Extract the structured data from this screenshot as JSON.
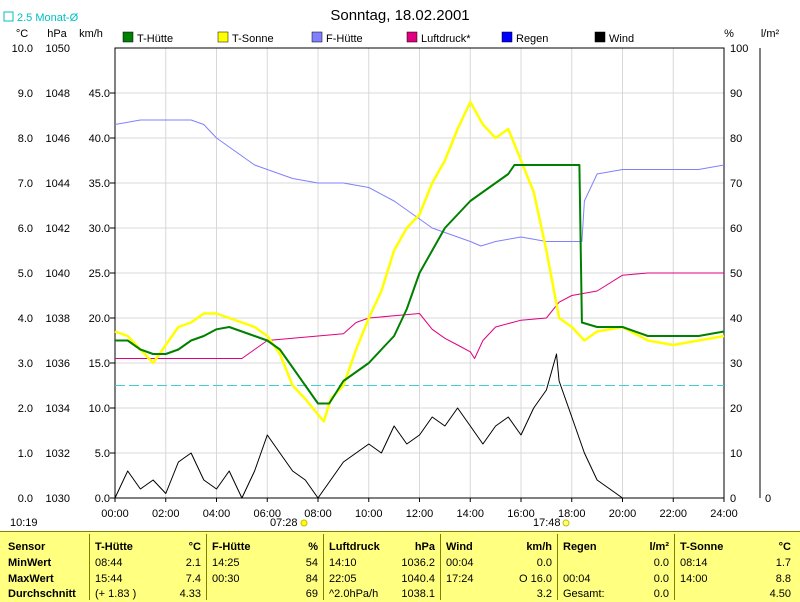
{
  "title": "Sonntag, 18.02.2001",
  "corner_label": "2.5 Monat-Ø",
  "units": {
    "c": "°C",
    "hpa": "hPa",
    "kmh": "km/h",
    "pct": "%",
    "lm2": "l/m²"
  },
  "legend": [
    {
      "label": "T-Hütte",
      "color": "#008000"
    },
    {
      "label": "T-Sonne",
      "color": "#ffff00"
    },
    {
      "label": "F-Hütte",
      "color": "#8080ff"
    },
    {
      "label": "Luftdruck*",
      "color": "#e0007f"
    },
    {
      "label": "Regen",
      "color": "#0000ff"
    },
    {
      "label": "Wind",
      "color": "#000000"
    }
  ],
  "timestamps": {
    "clock": "10:19",
    "sunrise": "07:28",
    "sunset": "17:48"
  },
  "chart_data": {
    "type": "line",
    "x_ticks": [
      "00:00",
      "02:00",
      "04:00",
      "06:00",
      "08:00",
      "10:00",
      "12:00",
      "14:00",
      "16:00",
      "18:00",
      "20:00",
      "22:00",
      "24:00"
    ],
    "axes": {
      "celsius": [
        "10.0",
        "9.0",
        "8.0",
        "7.0",
        "6.0",
        "5.0",
        "4.0",
        "3.0",
        "2.0",
        "1.0",
        "0.0"
      ],
      "hpa": [
        "1050",
        "1048",
        "1046",
        "1044",
        "1042",
        "1040",
        "1038",
        "1036",
        "1034",
        "1032",
        "1030"
      ],
      "kmh": [
        "45.0",
        "40.0",
        "35.0",
        "30.0",
        "25.0",
        "20.0",
        "15.0",
        "10.0",
        "5.0",
        "0.0"
      ],
      "percent": [
        "100",
        "90",
        "80",
        "70",
        "60",
        "50",
        "40",
        "30",
        "20",
        "10",
        "0"
      ],
      "rain": [
        "0"
      ]
    },
    "reference_line": {
      "label": "2.5 Monat-Ø",
      "celsius": 2.5
    },
    "series": [
      {
        "name": "T-Hütte",
        "axis": "celsius",
        "color": "#008000",
        "points": [
          [
            0,
            3.5
          ],
          [
            0.5,
            3.5
          ],
          [
            1,
            3.3
          ],
          [
            1.5,
            3.2
          ],
          [
            2,
            3.2
          ],
          [
            2.5,
            3.3
          ],
          [
            3,
            3.5
          ],
          [
            3.5,
            3.6
          ],
          [
            4,
            3.75
          ],
          [
            4.5,
            3.8
          ],
          [
            5,
            3.7
          ],
          [
            5.5,
            3.6
          ],
          [
            6,
            3.5
          ],
          [
            6.5,
            3.3
          ],
          [
            7,
            2.9
          ],
          [
            7.5,
            2.5
          ],
          [
            8,
            2.1
          ],
          [
            8.44,
            2.1
          ],
          [
            9,
            2.6
          ],
          [
            9.5,
            2.8
          ],
          [
            10,
            3.0
          ],
          [
            10.5,
            3.3
          ],
          [
            11,
            3.6
          ],
          [
            11.5,
            4.2
          ],
          [
            12,
            5.0
          ],
          [
            12.5,
            5.5
          ],
          [
            13,
            6.0
          ],
          [
            13.5,
            6.3
          ],
          [
            14,
            6.6
          ],
          [
            14.5,
            6.8
          ],
          [
            15,
            7.0
          ],
          [
            15.5,
            7.2
          ],
          [
            15.74,
            7.4
          ],
          [
            16.5,
            7.4
          ],
          [
            17,
            7.4
          ],
          [
            17.5,
            7.4
          ],
          [
            18,
            7.4
          ],
          [
            18.3,
            7.4
          ],
          [
            18.4,
            3.9
          ],
          [
            19,
            3.8
          ],
          [
            20,
            3.8
          ],
          [
            21,
            3.6
          ],
          [
            22,
            3.6
          ],
          [
            23,
            3.6
          ],
          [
            24,
            3.7
          ]
        ]
      },
      {
        "name": "T-Sonne",
        "axis": "celsius",
        "color": "#ffff00",
        "points": [
          [
            0,
            3.7
          ],
          [
            0.5,
            3.6
          ],
          [
            1,
            3.3
          ],
          [
            1.5,
            3.0
          ],
          [
            2,
            3.4
          ],
          [
            2.5,
            3.8
          ],
          [
            3,
            3.9
          ],
          [
            3.5,
            4.1
          ],
          [
            4,
            4.1
          ],
          [
            4.5,
            4.0
          ],
          [
            5,
            3.9
          ],
          [
            5.5,
            3.8
          ],
          [
            6,
            3.6
          ],
          [
            6.5,
            3.2
          ],
          [
            7,
            2.5
          ],
          [
            7.5,
            2.2
          ],
          [
            8.23,
            1.7
          ],
          [
            8.5,
            2.2
          ],
          [
            9,
            2.5
          ],
          [
            9.5,
            3.3
          ],
          [
            10,
            4.0
          ],
          [
            10.5,
            4.6
          ],
          [
            11,
            5.5
          ],
          [
            11.5,
            6.0
          ],
          [
            12,
            6.3
          ],
          [
            12.5,
            7.0
          ],
          [
            13,
            7.5
          ],
          [
            13.5,
            8.2
          ],
          [
            14,
            8.8
          ],
          [
            14.5,
            8.3
          ],
          [
            15,
            8.0
          ],
          [
            15.5,
            8.2
          ],
          [
            16,
            7.5
          ],
          [
            16.5,
            6.8
          ],
          [
            17,
            5.5
          ],
          [
            17.5,
            4.0
          ],
          [
            18,
            3.8
          ],
          [
            18.5,
            3.5
          ],
          [
            19,
            3.7
          ],
          [
            20,
            3.8
          ],
          [
            21,
            3.5
          ],
          [
            22,
            3.4
          ],
          [
            23,
            3.5
          ],
          [
            24,
            3.6
          ]
        ]
      },
      {
        "name": "F-Hütte",
        "axis": "percent",
        "color": "#8080ff",
        "points": [
          [
            0,
            83
          ],
          [
            1,
            84
          ],
          [
            2,
            84
          ],
          [
            3,
            84
          ],
          [
            3.5,
            83
          ],
          [
            4,
            80
          ],
          [
            4.5,
            78
          ],
          [
            5,
            76
          ],
          [
            5.5,
            74
          ],
          [
            6,
            73
          ],
          [
            7,
            71
          ],
          [
            8,
            70
          ],
          [
            9,
            70
          ],
          [
            10,
            69
          ],
          [
            11,
            66
          ],
          [
            11.5,
            64
          ],
          [
            12,
            62
          ],
          [
            12.5,
            60
          ],
          [
            13,
            59
          ],
          [
            14,
            57
          ],
          [
            14.42,
            56
          ],
          [
            15,
            57
          ],
          [
            16,
            58
          ],
          [
            17,
            57
          ],
          [
            18,
            57
          ],
          [
            18.4,
            57
          ],
          [
            18.5,
            66
          ],
          [
            19,
            72
          ],
          [
            20,
            73
          ],
          [
            21,
            73
          ],
          [
            22,
            73
          ],
          [
            23,
            73
          ],
          [
            24,
            74
          ]
        ]
      },
      {
        "name": "Luftdruck*",
        "axis": "hpa",
        "color": "#e0007f",
        "points": [
          [
            0,
            1036.2
          ],
          [
            1,
            1036.2
          ],
          [
            2,
            1036.2
          ],
          [
            3,
            1036.2
          ],
          [
            4,
            1036.2
          ],
          [
            5,
            1036.2
          ],
          [
            5.5,
            1036.6
          ],
          [
            6,
            1037.0
          ],
          [
            7,
            1037.1
          ],
          [
            8,
            1037.2
          ],
          [
            9,
            1037.3
          ],
          [
            9.5,
            1037.8
          ],
          [
            10,
            1038.0
          ],
          [
            11,
            1038.1
          ],
          [
            12,
            1038.2
          ],
          [
            12.5,
            1037.5
          ],
          [
            13,
            1037.1
          ],
          [
            13.5,
            1036.8
          ],
          [
            14,
            1036.5
          ],
          [
            14.17,
            1036.2
          ],
          [
            14.5,
            1037.0
          ],
          [
            15,
            1037.6
          ],
          [
            16,
            1037.9
          ],
          [
            17,
            1038.0
          ],
          [
            17.5,
            1038.7
          ],
          [
            18,
            1039.0
          ],
          [
            19,
            1039.2
          ],
          [
            20,
            1039.9
          ],
          [
            21,
            1040.0
          ],
          [
            22.08,
            1040.0
          ],
          [
            23,
            1040.0
          ],
          [
            24,
            1040.0
          ]
        ]
      },
      {
        "name": "Wind",
        "axis": "kmh",
        "color": "#000000",
        "points": [
          [
            0,
            0
          ],
          [
            0.5,
            3
          ],
          [
            1,
            1
          ],
          [
            1.5,
            2
          ],
          [
            2,
            0.5
          ],
          [
            2.5,
            4
          ],
          [
            3,
            5
          ],
          [
            3.5,
            2
          ],
          [
            4,
            1
          ],
          [
            4.5,
            3
          ],
          [
            5,
            0
          ],
          [
            5.5,
            3
          ],
          [
            6,
            7
          ],
          [
            6.5,
            5
          ],
          [
            7,
            3
          ],
          [
            7.5,
            2
          ],
          [
            8,
            0
          ],
          [
            8.5,
            2
          ],
          [
            9,
            4
          ],
          [
            9.5,
            5
          ],
          [
            10,
            6
          ],
          [
            10.5,
            5
          ],
          [
            11,
            8
          ],
          [
            11.5,
            6
          ],
          [
            12,
            7
          ],
          [
            12.5,
            9
          ],
          [
            13,
            8
          ],
          [
            13.5,
            10
          ],
          [
            14,
            8
          ],
          [
            14.5,
            6
          ],
          [
            15,
            8
          ],
          [
            15.5,
            9
          ],
          [
            16,
            7
          ],
          [
            16.5,
            10
          ],
          [
            17,
            12
          ],
          [
            17.4,
            16
          ],
          [
            17.5,
            13
          ],
          [
            18,
            9
          ],
          [
            18.5,
            5
          ],
          [
            19,
            2
          ],
          [
            20,
            0
          ],
          [
            21,
            0
          ],
          [
            22,
            0
          ],
          [
            23,
            0
          ],
          [
            24,
            0
          ]
        ]
      }
    ]
  },
  "stats": {
    "row_labels": [
      "Sensor",
      "MinWert",
      "MaxWert",
      "Durchschnitt"
    ],
    "sections": [
      {
        "name": "T-Hütte",
        "unit": "°C",
        "min": [
          "08:44",
          "2.1"
        ],
        "max": [
          "15:44",
          "7.4"
        ],
        "avg": [
          "(+ 1.83 )",
          "4.33"
        ]
      },
      {
        "name": "F-Hütte",
        "unit": "%",
        "min": [
          "14:25",
          "54"
        ],
        "max": [
          "00:30",
          "84"
        ],
        "avg": [
          "",
          "69"
        ]
      },
      {
        "name": "Luftdruck",
        "unit": "hPa",
        "min": [
          "14:10",
          "1036.2"
        ],
        "max": [
          "22:05",
          "1040.4"
        ],
        "avg": [
          "^2.0hPa/h",
          "1038.1"
        ]
      },
      {
        "name": "Wind",
        "unit": "km/h",
        "min": [
          "00:04",
          "0.0"
        ],
        "max": [
          "17:24",
          "O 16.0"
        ],
        "avg": [
          "",
          "3.2"
        ]
      },
      {
        "name": "Regen",
        "unit": "l/m²",
        "min": [
          "",
          "0.0"
        ],
        "max": [
          "00:04",
          "0.0"
        ],
        "avg": [
          "Gesamt:",
          "0.0"
        ]
      },
      {
        "name": "T-Sonne",
        "unit": "°C",
        "min": [
          "08:14",
          "1.7"
        ],
        "max": [
          "14:00",
          "8.8"
        ],
        "avg": [
          "",
          "4.50"
        ]
      }
    ]
  }
}
